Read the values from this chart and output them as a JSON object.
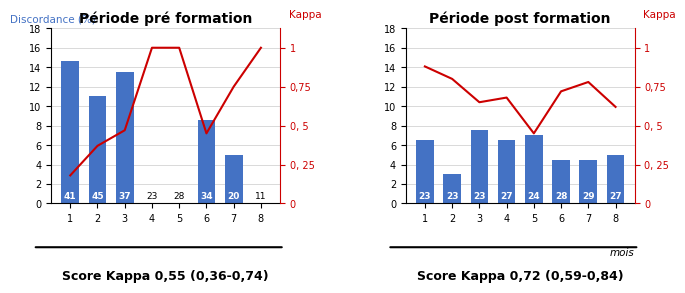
{
  "pre": {
    "title": "Période pré formation",
    "months": [
      1,
      2,
      3,
      4,
      5,
      6,
      7,
      8
    ],
    "bar_heights": [
      14.6,
      11.0,
      13.5,
      0,
      0,
      8.6,
      5.0,
      0
    ],
    "n_labels": [
      "41",
      "45",
      "37",
      "23",
      "28",
      "34",
      "20",
      "11"
    ],
    "kappa_values": [
      0.18,
      0.37,
      0.47,
      1.0,
      1.0,
      0.45,
      0.75,
      1.0
    ],
    "score_label": "Score Kappa 0,55 (0,36-0,74)",
    "ylim_left": [
      0,
      18
    ],
    "ylim_right": [
      0,
      1.125
    ],
    "yticks_left": [
      0,
      2,
      4,
      6,
      8,
      10,
      12,
      14,
      16,
      18
    ],
    "ytick_labels_left": [
      "0",
      "2",
      "4",
      "6",
      "8",
      "10",
      "12",
      "14",
      "16",
      "18"
    ],
    "yticks_right": [
      0,
      0.25,
      0.5,
      0.75,
      1.0
    ],
    "ytick_labels_right": [
      "0",
      "0, 25",
      "0, 5",
      "0,75",
      "1"
    ]
  },
  "post": {
    "title": "Période post formation",
    "months": [
      1,
      2,
      3,
      4,
      5,
      6,
      7,
      8
    ],
    "bar_heights": [
      6.5,
      3.0,
      7.5,
      6.5,
      7.0,
      4.5,
      4.5,
      5.0
    ],
    "n_labels": [
      "23",
      "23",
      "23",
      "27",
      "24",
      "28",
      "29",
      "27"
    ],
    "kappa_values": [
      0.88,
      0.8,
      0.65,
      0.68,
      0.45,
      0.72,
      0.78,
      0.62
    ],
    "score_label": "Score Kappa 0,72 (0,59-0,84)",
    "ylim_left": [
      0,
      18
    ],
    "ylim_right": [
      0,
      1.125
    ],
    "yticks_left": [
      0,
      2,
      4,
      6,
      8,
      10,
      12,
      14,
      16,
      18
    ],
    "ytick_labels_left": [
      "0",
      "2",
      "4",
      "6",
      "8",
      "10",
      "12",
      "14",
      "16",
      "18"
    ],
    "yticks_right": [
      0,
      0.25,
      0.5,
      0.75,
      1.0
    ],
    "ytick_labels_right": [
      "0",
      "0, 25",
      "0, 5",
      "0,75",
      "1"
    ]
  },
  "bar_color": "#4472C4",
  "line_color": "#CC0000",
  "discordance_label": "Discordance (%)",
  "kappa_label": "Kappa",
  "mois_label": "mois",
  "title_fontsize": 10,
  "axis_label_fontsize": 7.5,
  "tick_fontsize": 7,
  "score_fontsize": 9,
  "n_label_fontsize": 6.5
}
